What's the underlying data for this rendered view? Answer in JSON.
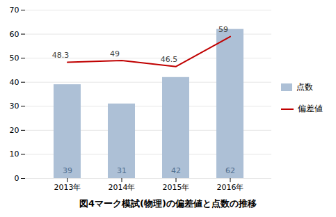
{
  "chart_data": {
    "type": "bar",
    "title": "図4マーク模試(物理)の偏差値と点数の推移",
    "categories": [
      "2013年",
      "2014年",
      "2015年",
      "2016年"
    ],
    "series": [
      {
        "name": "点数",
        "type": "bar",
        "color": "#adc0d6",
        "values": [
          39,
          31,
          42,
          62
        ]
      },
      {
        "name": "偏差値",
        "type": "line",
        "color": "#c00000",
        "values": [
          48.3,
          49.0,
          46.5,
          59.0
        ]
      }
    ],
    "ylim": [
      0,
      70
    ],
    "yticks": [
      0,
      10,
      20,
      30,
      40,
      50,
      60,
      70
    ],
    "grid": true,
    "legend": "right",
    "data_labels": true
  }
}
